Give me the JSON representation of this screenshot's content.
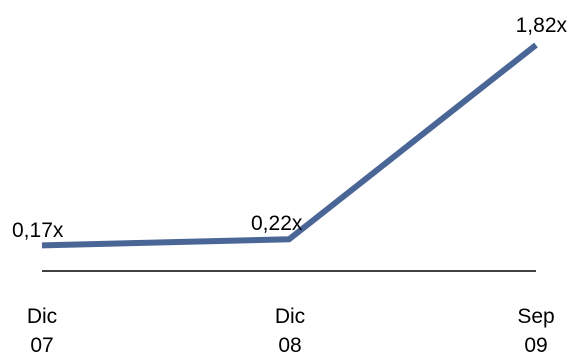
{
  "chart_data": {
    "type": "line",
    "categories": [
      [
        "Dic",
        "07"
      ],
      [
        "Dic",
        "08"
      ],
      [
        "Sep",
        "09"
      ]
    ],
    "series": [
      {
        "values": [
          0.17,
          0.22,
          1.82
        ],
        "data_labels": [
          "0,17x",
          "0,22x",
          "1,82x"
        ],
        "color": "#4a6696"
      }
    ],
    "title": "",
    "xlabel": "",
    "ylabel": "",
    "ylim": [
      0,
      2.0
    ],
    "grid": false,
    "legend": "none",
    "axis_color": "#000000"
  }
}
